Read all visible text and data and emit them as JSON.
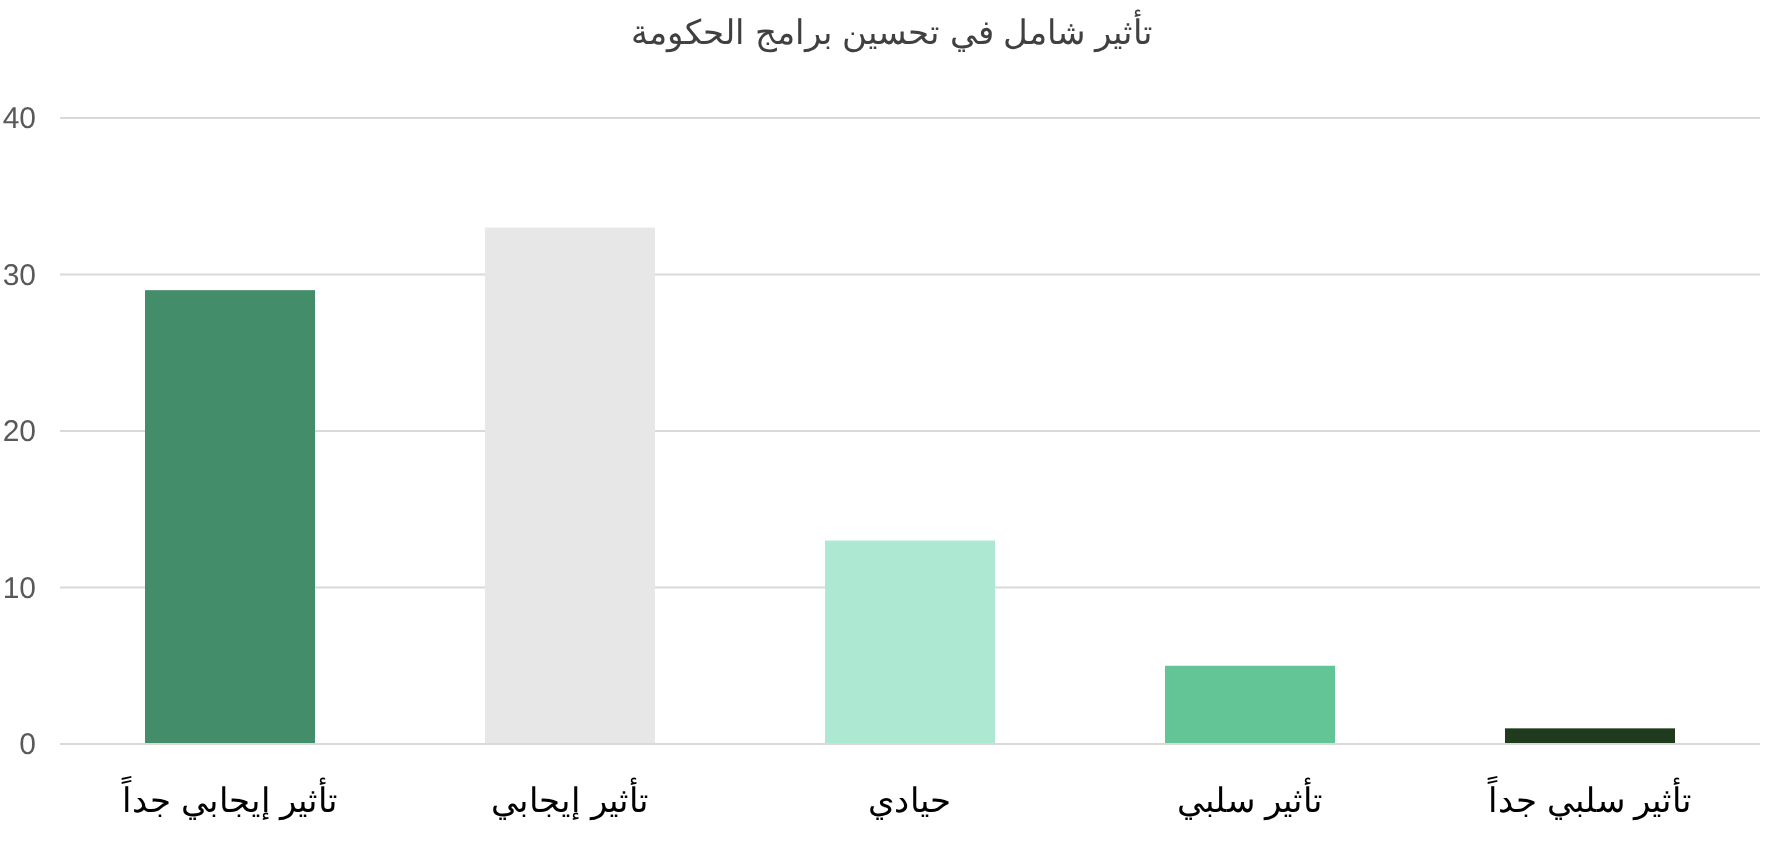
{
  "chart_data": {
    "type": "bar",
    "title": "تأثير شامل في تحسين برامج الحكومة",
    "categories": [
      "تأثير إيجابي جداً",
      "تأثير إيجابي",
      "حيادي",
      "تأثير سلبي",
      "تأثير سلبي جداً"
    ],
    "values": [
      29,
      33,
      13,
      5,
      1
    ],
    "colors": [
      "#448d6b",
      "#e7e7e7",
      "#ade8d3",
      "#63c595",
      "#1f3a1d"
    ],
    "ylim": [
      0,
      40
    ],
    "yticks": [
      0,
      10,
      20,
      30,
      40
    ],
    "grid": "y"
  }
}
